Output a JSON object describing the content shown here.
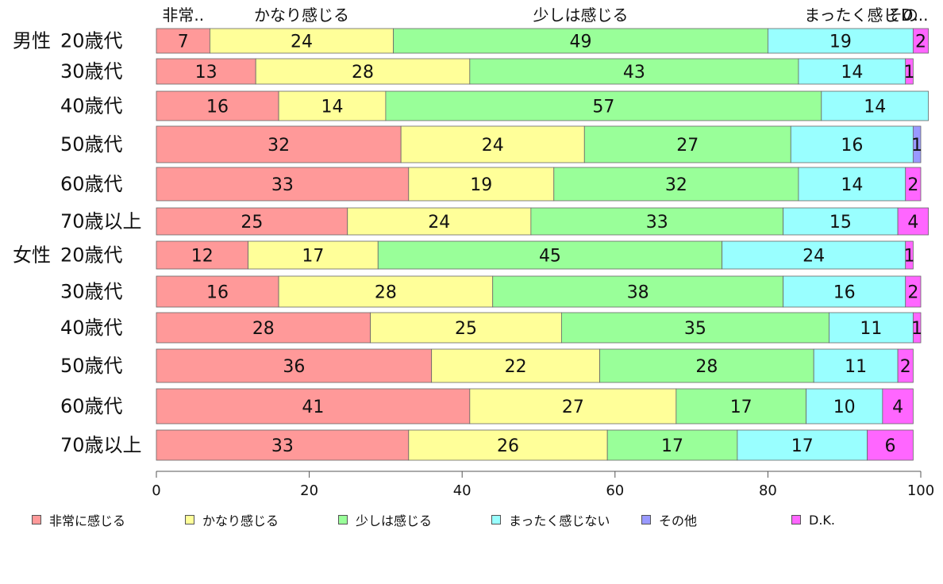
{
  "chart_data": {
    "type": "bar",
    "orientation": "horizontal",
    "stacked": true,
    "top_labels": [
      "非常..",
      "かなり感じる",
      "少しは感じる",
      "まったく感じない",
      "その他",
      "D.K."
    ],
    "top_labels_display": [
      "非常..",
      "かなり感じる",
      "少しは感じる",
      "まったく感じ",
      "その",
      "D..."
    ],
    "series": [
      {
        "name": "非常に感じる",
        "color": "#ff9999"
      },
      {
        "name": "かなり感じる",
        "color": "#ffff99"
      },
      {
        "name": "少しは感じる",
        "color": "#99ff99"
      },
      {
        "name": "まったく感じない",
        "color": "#99ffff"
      },
      {
        "name": "その他",
        "color": "#9999ff"
      },
      {
        "name": "D.K.",
        "color": "#ff66ff"
      }
    ],
    "groups": [
      {
        "label": "男性",
        "rows": [
          {
            "label": "20歳代",
            "values": [
              7,
              24,
              49,
              19,
              0,
              2
            ]
          },
          {
            "label": "30歳代",
            "values": [
              13,
              28,
              43,
              14,
              0,
              1
            ]
          },
          {
            "label": "40歳代",
            "values": [
              16,
              14,
              57,
              14,
              0,
              0
            ]
          },
          {
            "label": "50歳代",
            "values": [
              32,
              24,
              27,
              16,
              1,
              0
            ]
          },
          {
            "label": "60歳代",
            "values": [
              33,
              19,
              32,
              14,
              0,
              2
            ]
          },
          {
            "label": "70歳以上",
            "values": [
              25,
              24,
              33,
              15,
              0,
              4
            ]
          }
        ]
      },
      {
        "label": "女性",
        "rows": [
          {
            "label": "20歳代",
            "values": [
              12,
              17,
              45,
              24,
              0,
              1
            ]
          },
          {
            "label": "30歳代",
            "values": [
              16,
              28,
              38,
              16,
              0,
              2
            ]
          },
          {
            "label": "40歳代",
            "values": [
              28,
              25,
              35,
              11,
              0,
              1
            ]
          },
          {
            "label": "50歳代",
            "values": [
              36,
              22,
              28,
              11,
              0,
              2
            ]
          },
          {
            "label": "60歳代",
            "values": [
              41,
              27,
              17,
              10,
              0,
              4
            ]
          },
          {
            "label": "70歳以上",
            "values": [
              33,
              26,
              17,
              17,
              0,
              6
            ]
          }
        ]
      }
    ],
    "xlim": [
      0,
      100
    ],
    "xticks": [
      0,
      20,
      40,
      60,
      80,
      100
    ],
    "grid": false,
    "legend_position": "bottom"
  }
}
